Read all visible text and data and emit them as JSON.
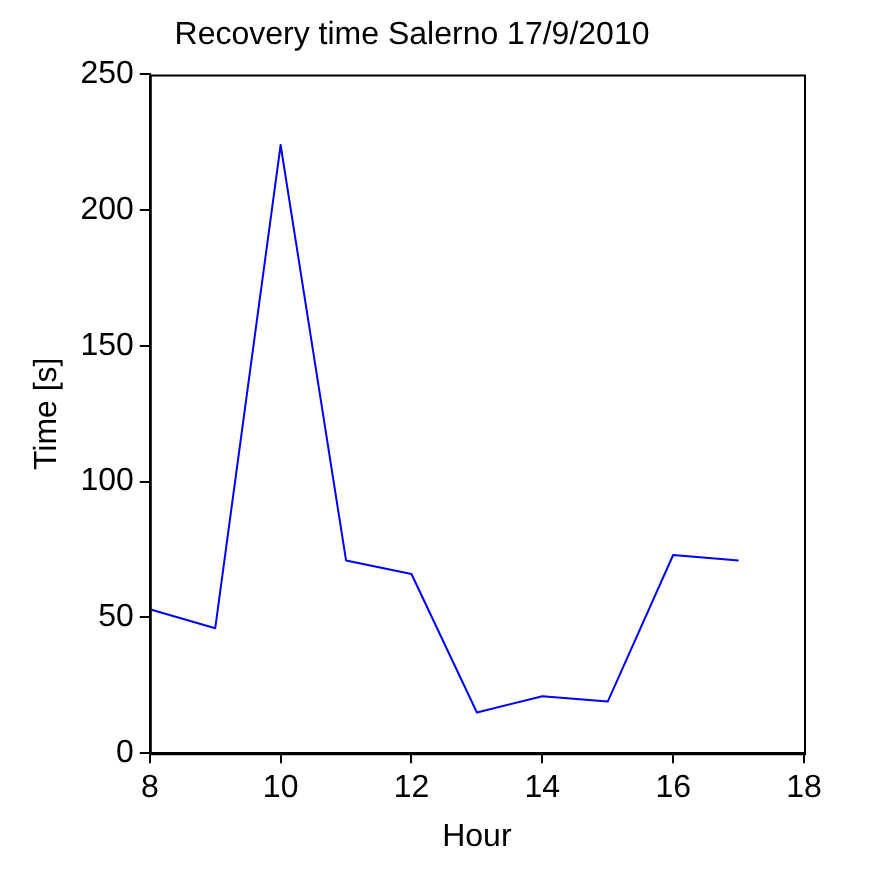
{
  "chart_data": {
    "type": "line",
    "title": "Recovery time Salerno 17/9/2010",
    "xlabel": "Hour",
    "ylabel": "Time [s]",
    "x": [
      8,
      9,
      10,
      11,
      12,
      13,
      14,
      15,
      16,
      17
    ],
    "series": [
      {
        "color": "#0000ff",
        "values": [
          53,
          46,
          224,
          71,
          66,
          15,
          21,
          19,
          73,
          71
        ]
      }
    ],
    "xlim": [
      8,
      18
    ],
    "xticks": [
      8,
      10,
      12,
      14,
      16,
      18
    ],
    "ylim": [
      0,
      250
    ],
    "yticks": [
      0,
      50,
      100,
      150,
      200,
      250
    ],
    "grid": false,
    "legend": false,
    "marker": "none",
    "line_style": "solid"
  }
}
